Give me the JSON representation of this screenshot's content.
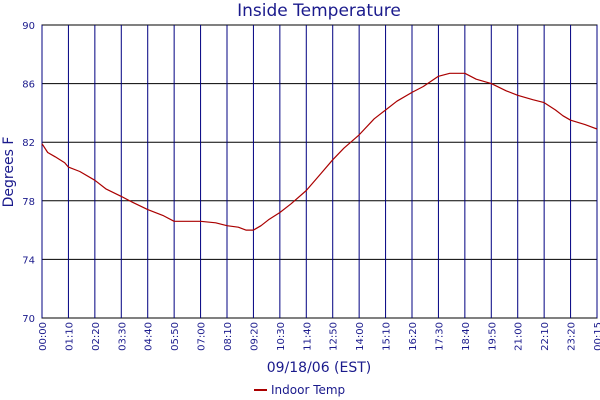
{
  "chart_data": {
    "type": "line",
    "title": "Inside Temperature",
    "xlabel": "09/18/06 (EST)",
    "ylabel": "Degrees F",
    "ylim": [
      70,
      90
    ],
    "yticks": [
      70,
      74,
      78,
      82,
      86,
      90
    ],
    "xlim": [
      "00:00",
      "00:15 (next day)"
    ],
    "xticks": [
      "00:00",
      "01:10",
      "02:20",
      "03:30",
      "04:40",
      "05:50",
      "07:00",
      "08:10",
      "09:20",
      "10:30",
      "11:40",
      "12:50",
      "14:00",
      "15:10",
      "16:20",
      "17:30",
      "18:40",
      "19:50",
      "21:00",
      "22:10",
      "23:20",
      "00:15"
    ],
    "grid": true,
    "legend_position": "bottom-center",
    "series": [
      {
        "name": "Indoor Temp",
        "color": "#aa0000",
        "x": [
          "00:00",
          "00:15",
          "00:35",
          "01:00",
          "01:10",
          "01:40",
          "02:20",
          "02:50",
          "03:30",
          "04:00",
          "04:40",
          "05:20",
          "05:50",
          "06:20",
          "07:00",
          "07:40",
          "08:10",
          "08:40",
          "09:00",
          "09:20",
          "09:40",
          "10:00",
          "10:30",
          "11:00",
          "11:40",
          "12:20",
          "12:50",
          "13:20",
          "14:00",
          "14:40",
          "15:10",
          "15:40",
          "16:20",
          "16:50",
          "17:30",
          "18:00",
          "18:40",
          "19:10",
          "19:50",
          "20:30",
          "21:00",
          "21:40",
          "22:10",
          "22:40",
          "23:00",
          "23:20",
          "23:50",
          "00:15"
        ],
        "values": [
          81.9,
          81.3,
          81.0,
          80.6,
          80.3,
          80.0,
          79.4,
          78.8,
          78.3,
          77.9,
          77.4,
          77.0,
          76.6,
          76.6,
          76.6,
          76.5,
          76.3,
          76.2,
          76.0,
          76.0,
          76.3,
          76.7,
          77.2,
          77.8,
          78.7,
          79.9,
          80.8,
          81.6,
          82.5,
          83.6,
          84.2,
          84.8,
          85.4,
          85.8,
          86.5,
          86.7,
          86.7,
          86.3,
          86.0,
          85.5,
          85.2,
          84.9,
          84.7,
          84.2,
          83.8,
          83.5,
          83.2,
          82.9
        ]
      }
    ]
  }
}
